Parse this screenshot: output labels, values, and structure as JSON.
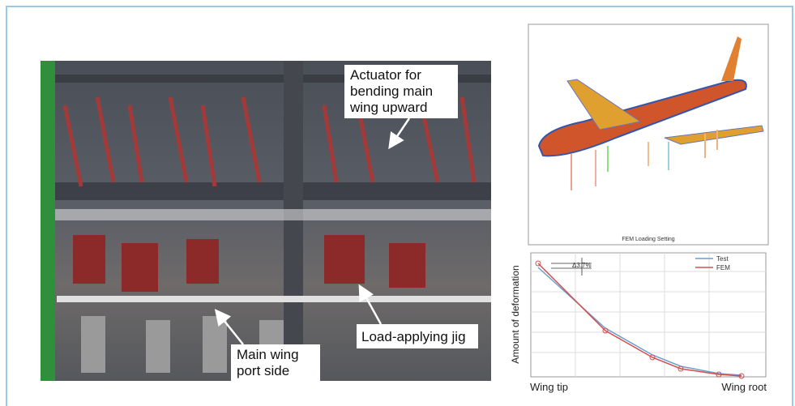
{
  "photo": {
    "annotations": [
      {
        "lines": [
          "Actuator for",
          "bending main",
          "wing upward"
        ]
      },
      {
        "lines": [
          "Load-applying jig"
        ]
      },
      {
        "lines": [
          "Main wing",
          "port side"
        ]
      }
    ]
  },
  "fem": {
    "caption": "FEM Loading Setting"
  },
  "deformation_plot": {
    "y_label": "Amount of deformation",
    "x_labels": [
      "Wing tip",
      "Wing root"
    ],
    "legend": [
      "Test",
      "FEM"
    ],
    "annotation": "Δ3.7%"
  }
}
